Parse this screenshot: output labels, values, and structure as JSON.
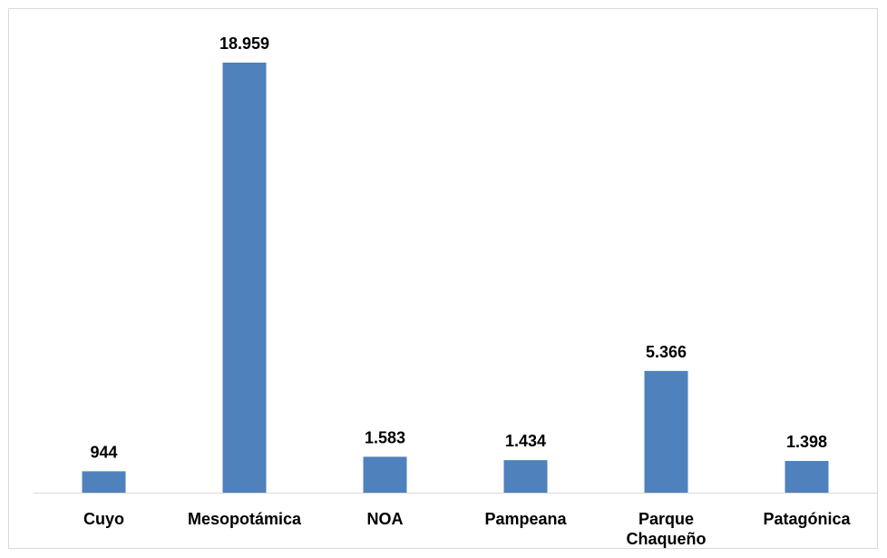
{
  "chart_data": {
    "type": "bar",
    "categories": [
      "Cuyo",
      "Mesopotámica",
      "NOA",
      "Pampeana",
      "Parque Chaqueño",
      "Patagónica"
    ],
    "category_label_lines": [
      [
        "Cuyo"
      ],
      [
        "Mesopotámica"
      ],
      [
        "NOA"
      ],
      [
        "Pampeana"
      ],
      [
        "Parque",
        "Chaqueño"
      ],
      [
        "Patagónica"
      ]
    ],
    "values": [
      944,
      18959,
      1583,
      1434,
      5366,
      1398
    ],
    "data_labels": [
      "944",
      "18.959",
      "1.583",
      "1.434",
      "5.366",
      "1.398"
    ],
    "title": "",
    "xlabel": "",
    "ylabel": "",
    "ylim": [
      0,
      18959
    ],
    "grid": false,
    "legend": "none",
    "colors": {
      "bar": "#4f81bd",
      "axis": "#d9d9d9",
      "border": "#d9d9d9"
    }
  }
}
